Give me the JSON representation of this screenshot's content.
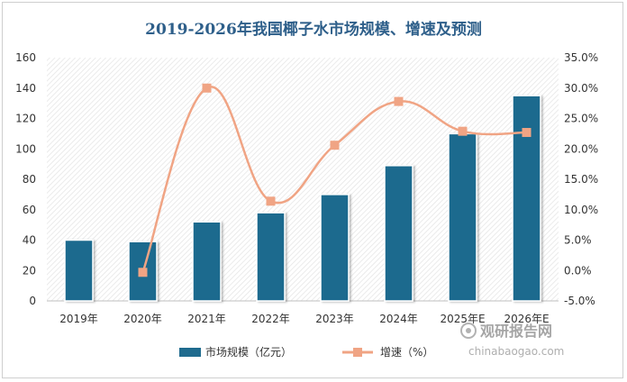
{
  "chart_data": {
    "type": "bar+line",
    "title": "2019-2026年我国椰子水市场规模、增速及预测",
    "categories": [
      "2019年",
      "2020年",
      "2021年",
      "2022年",
      "2023年",
      "2024年",
      "2025年E",
      "2026年E"
    ],
    "series": [
      {
        "name": "市场规模（亿元）",
        "type": "bar",
        "axis": "left",
        "color": "#1f6b8e",
        "values": [
          40,
          39,
          52,
          58,
          70,
          89,
          110,
          135
        ]
      },
      {
        "name": "增速（%）",
        "type": "line",
        "axis": "right",
        "color": "#f0a484",
        "values": [
          null,
          -0.3,
          30.0,
          11.4,
          20.6,
          27.8,
          22.9,
          22.7
        ]
      }
    ],
    "y_left": {
      "min": 0,
      "max": 160,
      "step": 20,
      "ticks": [
        "0",
        "20",
        "40",
        "60",
        "80",
        "100",
        "120",
        "140",
        "160"
      ]
    },
    "y_right": {
      "min": -5,
      "max": 35,
      "step": 5,
      "ticks": [
        "-5.0%",
        "0.0%",
        "5.0%",
        "10.0%",
        "15.0%",
        "20.0%",
        "25.0%",
        "30.0%",
        "35.0%"
      ]
    },
    "grid": false,
    "legend_position": "bottom"
  },
  "watermark": {
    "logo_text": "观研报告网",
    "url_text": "chinabaogao.com"
  }
}
